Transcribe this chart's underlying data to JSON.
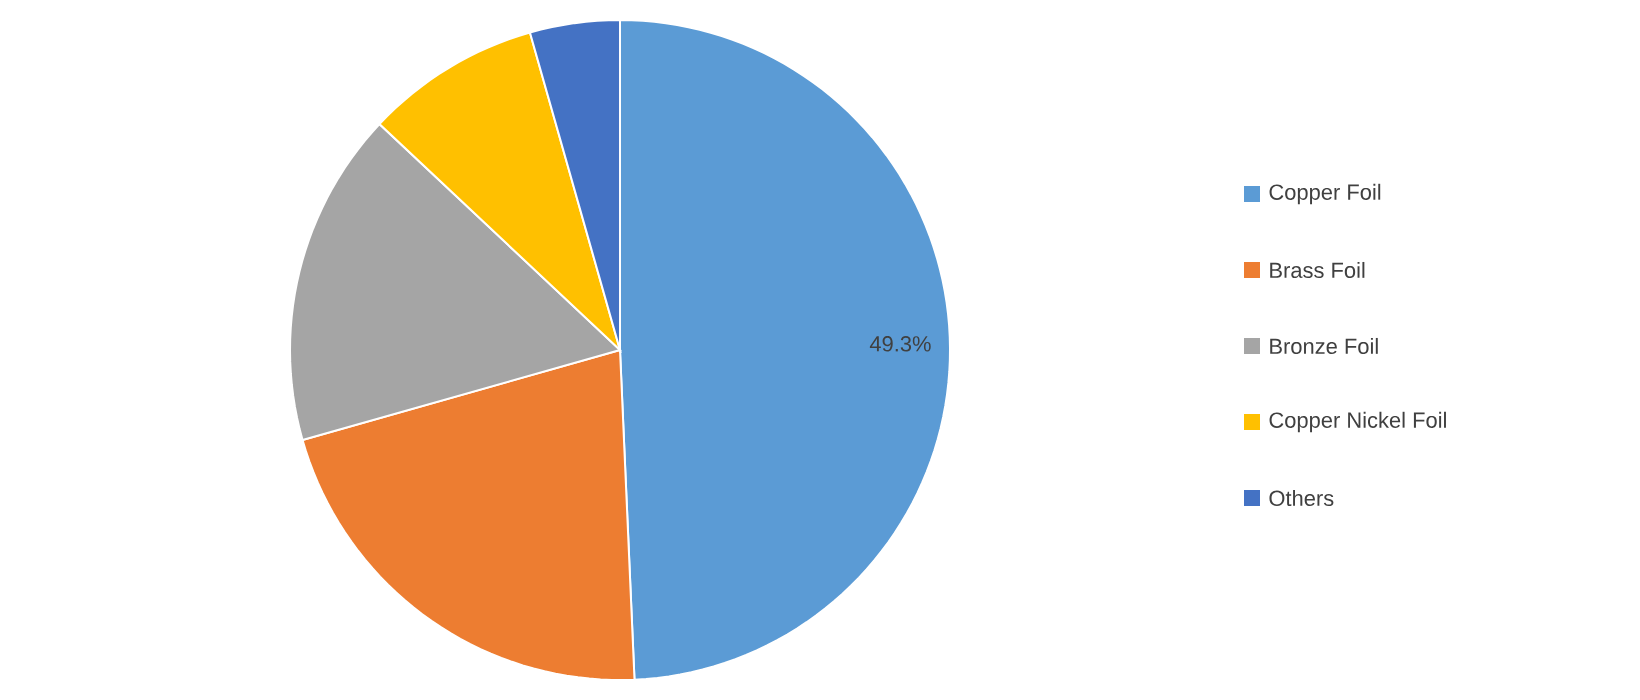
{
  "chart_data": {
    "type": "pie",
    "categories": [
      "Copper Foil",
      "Brass Foil",
      "Bronze Foil",
      "Copper Nickel Foil",
      "Others"
    ],
    "values": [
      49.3,
      21.3,
      16.4,
      8.6,
      4.4
    ],
    "colors": [
      "#5b9bd5",
      "#ed7d31",
      "#a5a5a5",
      "#ffc000",
      "#4472c4"
    ],
    "value_labels": [
      "49.3%",
      null,
      null,
      null,
      null
    ],
    "legend": "right"
  }
}
